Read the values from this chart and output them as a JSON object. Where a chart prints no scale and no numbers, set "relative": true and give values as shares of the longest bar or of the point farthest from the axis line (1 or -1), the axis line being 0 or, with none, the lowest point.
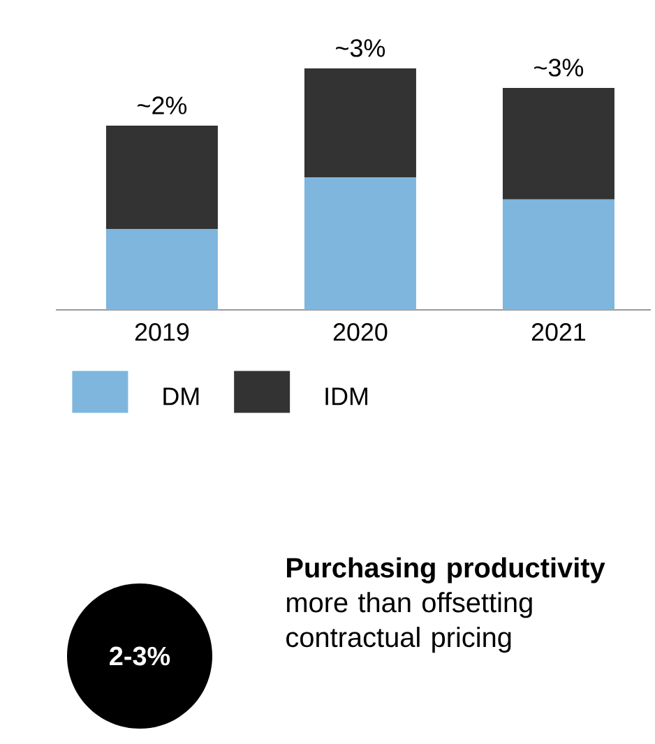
{
  "chart_data": {
    "type": "bar",
    "stacked": true,
    "relative": true,
    "categories": [
      "2019",
      "2020",
      "2021"
    ],
    "series": [
      {
        "name": "DM",
        "color": "#7eb6de",
        "values": [
          0.335,
          0.549,
          0.457
        ]
      },
      {
        "name": "IDM",
        "color": "#333333",
        "values": [
          0.428,
          0.451,
          0.462
        ]
      }
    ],
    "legend": "bottom",
    "annotations": [
      "2-3%",
      "**Purchasing productivity** more than offsetting contractual pricing",
      {
        "text": "~2%",
        "x": "2019",
        "y": 0.763
      },
      {
        "text": "~3%",
        "x": "2020",
        "y": 1.0
      },
      {
        "text": "~3%",
        "x": "2021",
        "y": 0.919
      }
    ]
  }
}
